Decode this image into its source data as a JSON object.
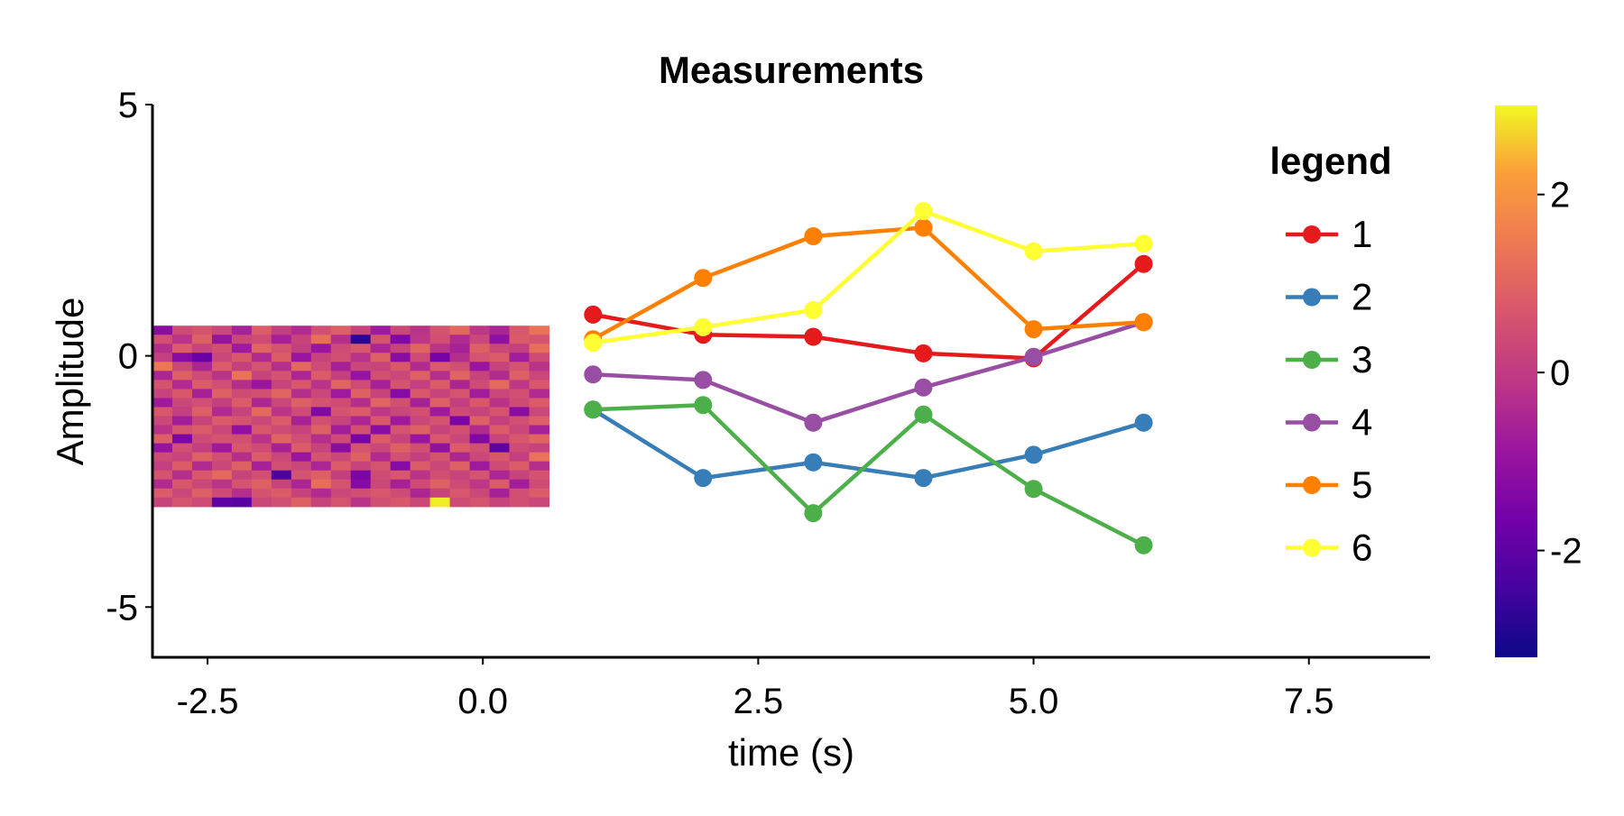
{
  "chart_data": {
    "type": "line",
    "title": "Measurements",
    "xlabel": "time (s)",
    "ylabel": "Amplitude",
    "xlim": [
      -3.0,
      8.6
    ],
    "ylim": [
      -6.0,
      5.0
    ],
    "xticks": [
      -2.5,
      0.0,
      2.5,
      5.0,
      7.5
    ],
    "xtick_labels": [
      "-2.5",
      "0.0",
      "2.5",
      "5.0",
      "7.5"
    ],
    "yticks": [
      5,
      0,
      -5
    ],
    "ytick_labels": [
      "5",
      "0",
      "-5"
    ],
    "grid": false,
    "legend": {
      "title": "legend",
      "placement": "top-right"
    },
    "x": [
      1,
      2,
      3,
      4,
      5,
      6
    ],
    "series": [
      {
        "name": "1",
        "color": "#e41a1c",
        "values": [
          0.82,
          0.42,
          0.38,
          0.05,
          -0.05,
          1.83
        ]
      },
      {
        "name": "2",
        "color": "#377eb8",
        "values": [
          -1.07,
          -2.43,
          -2.12,
          -2.43,
          -1.97,
          -1.33
        ]
      },
      {
        "name": "3",
        "color": "#4daf4a",
        "values": [
          -1.07,
          -0.98,
          -3.13,
          -1.17,
          -2.65,
          -3.77
        ]
      },
      {
        "name": "4",
        "color": "#984ea3",
        "values": [
          -0.37,
          -0.48,
          -1.33,
          -0.63,
          -0.02,
          0.67
        ]
      },
      {
        "name": "5",
        "color": "#ff7f00",
        "values": [
          0.33,
          1.55,
          2.38,
          2.55,
          0.53,
          0.67
        ]
      },
      {
        "name": "6",
        "color": "#ffff33",
        "values": [
          0.26,
          0.57,
          0.91,
          2.88,
          2.08,
          2.23
        ]
      }
    ],
    "heatmap": {
      "x_range": [
        -3.0,
        0.6
      ],
      "y_range": [
        -3.0,
        0.6
      ],
      "rows": 20,
      "cols": 20,
      "colormap": "plasma",
      "values": [
        [
          -1.2,
          0.4,
          0.6,
          0.3,
          -0.6,
          0.8,
          0.1,
          -0.4,
          0.5,
          0.9,
          0.2,
          -0.8,
          0.3,
          -0.2,
          0.6,
          1.1,
          -0.1,
          -0.5,
          0.7,
          1.3
        ],
        [
          0.5,
          -0.2,
          0.9,
          -1.0,
          0.3,
          0.4,
          -0.6,
          0.2,
          1.2,
          -0.3,
          -2.8,
          0.6,
          -1.4,
          -0.1,
          0.5,
          -0.4,
          0.3,
          -1.1,
          0.8,
          0.6
        ],
        [
          -0.3,
          0.8,
          0.2,
          0.5,
          -0.8,
          1.0,
          0.6,
          0.1,
          -0.9,
          0.4,
          0.7,
          -0.5,
          0.2,
          1.0,
          -0.2,
          -0.6,
          0.9,
          0.3,
          0.1,
          1.2
        ],
        [
          0.1,
          -1.3,
          -1.8,
          0.3,
          0.7,
          -0.4,
          0.8,
          -0.9,
          0.2,
          0.5,
          -0.2,
          0.9,
          -1.2,
          0.4,
          -1.6,
          -0.3,
          0.6,
          0.8,
          -0.7,
          0.4
        ],
        [
          1.4,
          0.3,
          -0.5,
          0.8,
          0.1,
          0.6,
          -0.3,
          1.1,
          0.4,
          -0.6,
          0.3,
          0.2,
          0.7,
          -0.4,
          0.8,
          0.5,
          -0.9,
          0.2,
          0.6,
          -0.2
        ],
        [
          -0.5,
          0.9,
          0.4,
          -0.2,
          1.3,
          0.2,
          0.6,
          -0.5,
          0.8,
          0.1,
          -1.0,
          0.5,
          0.3,
          0.9,
          -0.3,
          1.0,
          0.2,
          -0.4,
          0.9,
          0.3
        ],
        [
          0.6,
          -0.4,
          0.8,
          0.5,
          -0.3,
          -0.9,
          0.2,
          0.7,
          -0.2,
          1.0,
          0.4,
          -0.6,
          0.6,
          0.1,
          0.8,
          -0.5,
          0.4,
          1.1,
          -0.1,
          0.7
        ],
        [
          0.2,
          0.7,
          -0.6,
          0.9,
          0.4,
          0.5,
          1.0,
          -0.3,
          0.3,
          -0.8,
          0.9,
          0.2,
          -1.3,
          0.7,
          0.2,
          0.6,
          -0.7,
          0.3,
          0.5,
          -0.4
        ],
        [
          -0.8,
          0.3,
          0.5,
          0.1,
          0.8,
          -0.5,
          0.3,
          0.9,
          0.6,
          0.4,
          -0.3,
          1.0,
          0.5,
          -0.6,
          0.9,
          0.1,
          0.7,
          -0.2,
          0.4,
          0.8
        ],
        [
          0.7,
          0.1,
          0.9,
          -0.4,
          0.2,
          1.1,
          -0.2,
          0.4,
          -1.4,
          0.6,
          0.8,
          -0.1,
          0.3,
          0.5,
          -0.8,
          0.4,
          0.2,
          0.6,
          -1.2,
          0.3
        ],
        [
          0.3,
          -0.7,
          0.2,
          0.8,
          0.6,
          0.3,
          0.8,
          -0.6,
          0.5,
          0.2,
          -0.5,
          0.7,
          -0.8,
          0.3,
          0.6,
          -1.5,
          0.9,
          0.1,
          0.5,
          0.9
        ],
        [
          -0.2,
          0.6,
          0.8,
          0.3,
          -1.1,
          0.7,
          0.4,
          0.2,
          0.9,
          -0.7,
          0.5,
          -1.2,
          0.6,
          0.9,
          0.2,
          0.5,
          -0.4,
          0.8,
          0.3,
          -0.6
        ],
        [
          0.9,
          -1.5,
          0.4,
          0.6,
          0.5,
          -0.2,
          1.0,
          0.5,
          -0.3,
          0.4,
          -1.6,
          0.8,
          0.2,
          -0.9,
          0.7,
          0.3,
          -1.4,
          0.2,
          0.7,
          1.0
        ],
        [
          -1.0,
          0.5,
          0.1,
          -0.8,
          0.7,
          0.4,
          -0.6,
          0.8,
          0.2,
          -1.2,
          0.6,
          0.3,
          0.9,
          0.5,
          -1.1,
          0.8,
          0.5,
          -2.0,
          0.4,
          0.2
        ],
        [
          0.4,
          0.2,
          0.9,
          0.5,
          -0.3,
          0.8,
          0.3,
          -0.9,
          0.6,
          0.3,
          0.9,
          -0.4,
          0.5,
          0.1,
          0.6,
          -0.5,
          0.3,
          0.7,
          0.1,
          1.3
        ],
        [
          0.1,
          0.8,
          -0.4,
          0.3,
          0.9,
          -0.6,
          0.5,
          0.3,
          -0.5,
          0.8,
          0.2,
          0.6,
          -1.3,
          0.8,
          0.3,
          0.9,
          -0.8,
          0.4,
          0.8,
          -0.3
        ],
        [
          0.6,
          -0.3,
          0.7,
          1.1,
          0.2,
          0.5,
          -2.3,
          0.6,
          0.9,
          0.1,
          -1.5,
          0.4,
          0.7,
          -0.2,
          0.5,
          0.2,
          0.6,
          -0.5,
          0.2,
          0.6
        ],
        [
          -0.4,
          0.7,
          0.3,
          -0.2,
          0.6,
          0.9,
          0.2,
          -0.5,
          1.2,
          0.6,
          -1.3,
          0.3,
          -0.6,
          0.4,
          0.9,
          0.4,
          -0.1,
          0.8,
          -0.7,
          0.4
        ],
        [
          0.8,
          0.3,
          0.9,
          0.4,
          -0.3,
          0.6,
          0.8,
          0.2,
          -0.4,
          0.3,
          0.5,
          0.7,
          0.4,
          -0.5,
          0.2,
          0.7,
          0.3,
          -0.6,
          0.5,
          0.8
        ],
        [
          0.2,
          0.6,
          0.4,
          -2.0,
          -2.1,
          0.3,
          0.5,
          0.9,
          0.2,
          0.6,
          -0.2,
          0.5,
          0.7,
          0.3,
          2.9,
          0.4,
          0.6,
          0.2,
          0.5,
          0.3
        ]
      ]
    },
    "colorbar": {
      "range": [
        -3.2,
        3.0
      ],
      "ticks": [
        2,
        0,
        -2
      ],
      "tick_labels": [
        "2",
        "0",
        "-2"
      ]
    }
  }
}
